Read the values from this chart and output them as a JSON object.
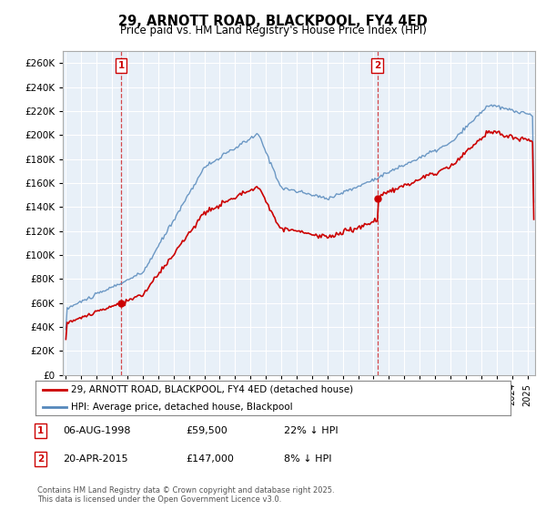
{
  "title": "29, ARNOTT ROAD, BLACKPOOL, FY4 4ED",
  "subtitle": "Price paid vs. HM Land Registry's House Price Index (HPI)",
  "property_label": "29, ARNOTT ROAD, BLACKPOOL, FY4 4ED (detached house)",
  "hpi_label": "HPI: Average price, detached house, Blackpool",
  "footer": "Contains HM Land Registry data © Crown copyright and database right 2025.\nThis data is licensed under the Open Government Licence v3.0.",
  "sale1_date": "06-AUG-1998",
  "sale1_price": 59500,
  "sale1_hpi": "22% ↓ HPI",
  "sale2_date": "20-APR-2015",
  "sale2_price": 147000,
  "sale2_hpi": "8% ↓ HPI",
  "ylim": [
    0,
    270000
  ],
  "yticks": [
    0,
    20000,
    40000,
    60000,
    80000,
    100000,
    120000,
    140000,
    160000,
    180000,
    200000,
    220000,
    240000,
    260000
  ],
  "property_color": "#cc0000",
  "hpi_color": "#5588bb",
  "vline_color": "#cc0000",
  "plot_bg_color": "#e8f0f8",
  "background_color": "#ffffff",
  "grid_color": "#ffffff"
}
